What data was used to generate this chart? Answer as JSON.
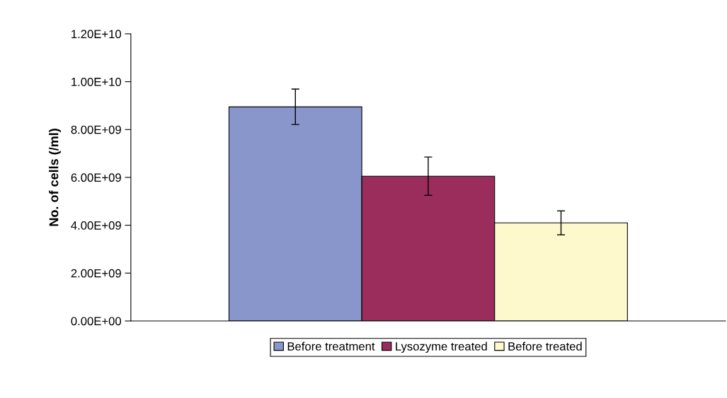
{
  "chart_data": {
    "type": "bar",
    "ylabel": "No. of cells (/ml)",
    "categories": [
      null
    ],
    "series": [
      {
        "name": "Before treatment",
        "color": "#8896cc",
        "values": [
          8950000000.0
        ],
        "errors": [
          740000000.0
        ]
      },
      {
        "name": "Lysozyme treated",
        "color": "#9b2d5c",
        "values": [
          6050000000.0
        ],
        "errors": [
          800000000.0
        ]
      },
      {
        "name": "Before treated",
        "color": "#fdf9cc",
        "values": [
          4100000000.0
        ],
        "errors": [
          500000000.0
        ]
      }
    ],
    "ylim": [
      0,
      12000000000.0
    ],
    "yticks": [
      {
        "value": 0,
        "label": "0.00E+00"
      },
      {
        "value": 2000000000.0,
        "label": "2.00E+09"
      },
      {
        "value": 4000000000.0,
        "label": "4.00E+09"
      },
      {
        "value": 6000000000.0,
        "label": "6.00E+09"
      },
      {
        "value": 8000000000.0,
        "label": "8.00E+09"
      },
      {
        "value": 10000000000.0,
        "label": "1.00E+10"
      },
      {
        "value": 12000000000.0,
        "label": "1.20E+10"
      }
    ],
    "grid": false,
    "legend": "bottom"
  }
}
